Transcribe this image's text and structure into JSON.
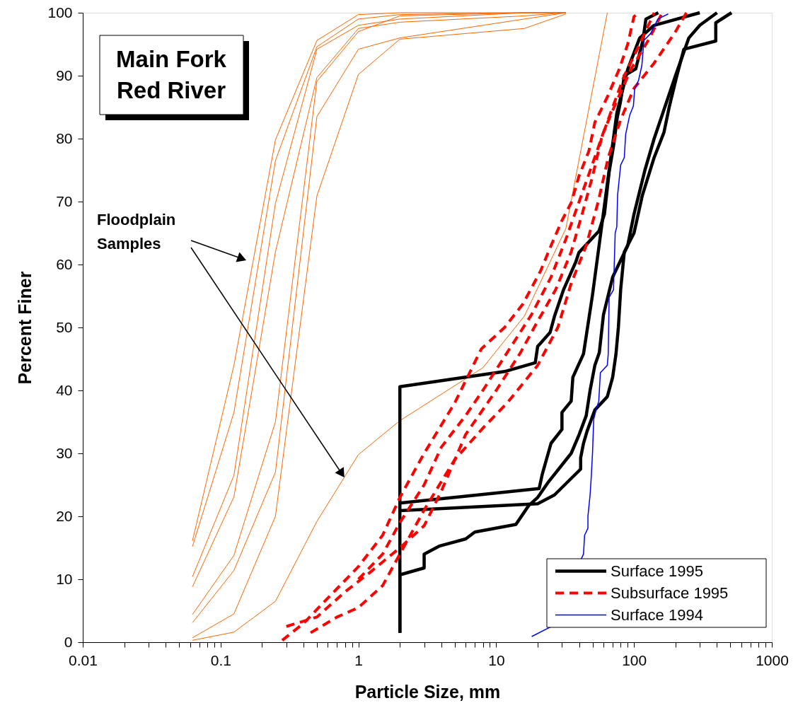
{
  "chart_data": {
    "type": "line",
    "title": "Main Fork\nRed River",
    "xlabel": "Particle Size, mm",
    "ylabel": "Percent Finer",
    "annotations": [
      "Floodplain\nSamples"
    ],
    "log": "x",
    "grid": false,
    "legend": "bottom right",
    "marker": "none",
    "xlim": [
      0.01,
      1000
    ],
    "ylim": [
      0,
      100
    ],
    "xticks": [
      0.01,
      {
        "value": 0.02,
        "label": null
      },
      {
        "value": 0.03,
        "label": null
      },
      {
        "value": 0.04,
        "label": null
      },
      {
        "value": 0.05,
        "label": null
      },
      {
        "value": 0.06,
        "label": null
      },
      {
        "value": 0.07,
        "label": null
      },
      {
        "value": 0.08,
        "label": null
      },
      {
        "value": 0.09,
        "label": null
      },
      0.1,
      {
        "value": 0.2,
        "label": null
      },
      {
        "value": 0.3,
        "label": null
      },
      {
        "value": 0.4,
        "label": null
      },
      {
        "value": 0.5,
        "label": null
      },
      {
        "value": 0.6,
        "label": null
      },
      {
        "value": 0.7,
        "label": null
      },
      {
        "value": 0.8,
        "label": null
      },
      {
        "value": 0.9,
        "label": null
      },
      1,
      {
        "value": 2,
        "label": null
      },
      {
        "value": 3,
        "label": null
      },
      {
        "value": 4,
        "label": null
      },
      {
        "value": 5,
        "label": null
      },
      {
        "value": 6,
        "label": null
      },
      {
        "value": 7,
        "label": null
      },
      {
        "value": 8,
        "label": null
      },
      {
        "value": 9,
        "label": null
      },
      10,
      {
        "value": 20,
        "label": null
      },
      {
        "value": 30,
        "label": null
      },
      {
        "value": 40,
        "label": null
      },
      {
        "value": 50,
        "label": null
      },
      {
        "value": 60,
        "label": null
      },
      {
        "value": 70,
        "label": null
      },
      {
        "value": 80,
        "label": null
      },
      {
        "value": 90,
        "label": null
      },
      100,
      {
        "value": 200,
        "label": null
      },
      {
        "value": 300,
        "label": null
      },
      {
        "value": 400,
        "label": null
      },
      {
        "value": 500,
        "label": null
      },
      {
        "value": 600,
        "label": null
      },
      {
        "value": 700,
        "label": null
      },
      {
        "value": 800,
        "label": null
      },
      {
        "value": 900,
        "label": null
      },
      1000
    ],
    "yticks": [
      0,
      10,
      20,
      30,
      40,
      50,
      60,
      70,
      80,
      90,
      100
    ],
    "series": [
      {
        "color": "#ff6600",
        "x": [
          0.0625,
          0.125,
          0.25,
          0.5,
          1,
          2,
          16,
          32
        ],
        "values": [
          16.1,
          44,
          79.8,
          95.6,
          99.7,
          100,
          100,
          100
        ]
      },
      {
        "color": "#ff6600",
        "x": [
          0.0625,
          0.125,
          0.25,
          0.5,
          1,
          2,
          16,
          32
        ],
        "values": [
          15.2,
          36.5,
          76.5,
          94.6,
          99,
          99.7,
          100,
          100
        ]
      },
      {
        "color": "#ff6600",
        "x": [
          0.0625,
          0.125,
          0.25,
          0.5,
          1,
          2,
          16,
          32
        ],
        "values": [
          10.4,
          26.5,
          69.7,
          94.2,
          98,
          99,
          100,
          100
        ]
      },
      {
        "color": "#ff6600",
        "x": [
          0.0625,
          0.125,
          0.25,
          0.5,
          1,
          2,
          16,
          32
        ],
        "values": [
          8.8,
          23.1,
          62,
          89.7,
          97.5,
          98.5,
          99.5,
          100
        ]
      },
      {
        "color": "#ff6600",
        "x": [
          0.0625,
          0.125,
          0.25,
          0.5,
          1,
          2,
          16,
          32
        ],
        "values": [
          4.4,
          13.8,
          35,
          89.1,
          97,
          99.5,
          100,
          100
        ]
      },
      {
        "color": "#ff6600",
        "x": [
          0.0625,
          0.125,
          0.25,
          0.5,
          1,
          2,
          16,
          32
        ],
        "values": [
          3.1,
          11.4,
          27,
          83.5,
          94.2,
          96,
          99,
          100
        ]
      },
      {
        "color": "#ff6600",
        "x": [
          0.0625,
          0.125,
          0.25,
          0.5,
          1,
          2,
          16,
          32
        ],
        "values": [
          0.7,
          4.5,
          20,
          70.9,
          90.2,
          95.8,
          97.5,
          99.8
        ]
      },
      {
        "color": "#ff6600",
        "x": [
          0.0625,
          0.125,
          0.25,
          0.5,
          1,
          2,
          8,
          16,
          32,
          64
        ],
        "values": [
          0.3,
          1.6,
          6.5,
          19.2,
          29.8,
          35.2,
          43.6,
          51.8,
          65.7,
          100
        ]
      },
      {
        "name": "Surface 1995",
        "color": "#000000",
        "line_style": "solid",
        "x": [
          2,
          2,
          11.5,
          19.2,
          20,
          24.6,
          26.5,
          30.8,
          37.8,
          39.8,
          55.6,
          61,
          66,
          71,
          75.5,
          80,
          85,
          103,
          116,
          122,
          150
        ],
        "values": [
          1.5,
          40.6,
          43,
          44.4,
          47,
          49.2,
          51.8,
          56,
          60.4,
          61.9,
          65.3,
          68,
          74.7,
          78.8,
          83.3,
          86,
          90,
          91.1,
          95.6,
          99,
          100
        ]
      },
      {
        "color": "#000000",
        "line_style": "solid",
        "x": [
          2,
          20.5,
          21.6,
          25,
          30,
          30,
          35,
          36,
          43,
          50,
          59,
          66,
          75,
          90,
          110,
          140,
          300
        ],
        "values": [
          22.1,
          24.4,
          26.7,
          31.6,
          33.8,
          36.5,
          38.3,
          42.1,
          45.8,
          55.2,
          67,
          75,
          84,
          91,
          96,
          98,
          100
        ]
      },
      {
        "color": "#000000",
        "line_style": "solid",
        "x": [
          2,
          20,
          26.5,
          41,
          41,
          43,
          45.6,
          52,
          64,
          70,
          74,
          77,
          80,
          85,
          100,
          115,
          140,
          165,
          180,
          203,
          230,
          392,
          392,
          510
        ],
        "values": [
          20.9,
          22,
          23.4,
          27.5,
          29.3,
          31.6,
          33.5,
          36.9,
          39,
          42.1,
          45.8,
          50,
          56,
          62,
          65,
          71,
          77,
          81,
          85,
          89.7,
          94.2,
          95.5,
          98.4,
          100
        ]
      },
      {
        "color": "#000000",
        "line_style": "solid",
        "x": [
          2,
          2,
          3,
          3,
          3.9,
          6,
          7,
          13.9,
          17.2,
          20,
          24,
          35,
          40,
          45,
          48,
          52,
          56,
          60,
          70,
          90,
          100,
          120,
          140,
          200,
          250,
          300,
          400
        ],
        "values": [
          1.5,
          10.7,
          11.8,
          14,
          15.3,
          16.4,
          17.5,
          18.7,
          21.7,
          23,
          25.5,
          30,
          33,
          36,
          40,
          44,
          46,
          52,
          58,
          63,
          68,
          75,
          80,
          90,
          96,
          98,
          100
        ]
      },
      {
        "name": "Subsurface 1995",
        "color": "#ff0000",
        "line_style": "dashed",
        "x": [
          0.28,
          0.4,
          0.6,
          1,
          1.5,
          2,
          3,
          5,
          7.8,
          11.5,
          15.6,
          21,
          25,
          30,
          35,
          39.8,
          47,
          52,
          64,
          78,
          90,
          100,
          110
        ],
        "values": [
          0.3,
          3,
          7,
          12,
          17,
          23,
          30,
          38,
          46.6,
          50,
          53.7,
          59,
          63,
          67,
          69.8,
          74,
          78,
          82.6,
          86.6,
          91,
          95,
          99.4,
          100
        ]
      },
      {
        "color": "#ff0000",
        "line_style": "dashed",
        "x": [
          0.3,
          0.5,
          0.8,
          1.2,
          2,
          3,
          4,
          6,
          10,
          15,
          20,
          27,
          35,
          42,
          50,
          58,
          70,
          85,
          110,
          140
        ],
        "values": [
          2.5,
          4,
          8,
          11,
          15,
          18.5,
          24,
          33,
          40,
          46,
          51,
          56,
          62,
          68,
          74,
          80,
          85,
          90,
          95,
          100
        ]
      },
      {
        "color": "#ff0000",
        "line_style": "dashed",
        "x": [
          0.45,
          0.7,
          1,
          1.5,
          2,
          3,
          5,
          8,
          12,
          20,
          28,
          35,
          45,
          55,
          65,
          80,
          100,
          140,
          200,
          240
        ],
        "values": [
          1.5,
          4,
          5.5,
          9,
          14,
          21,
          29,
          34,
          38,
          44,
          50,
          57,
          63,
          70,
          77,
          83,
          88,
          92,
          97,
          100
        ]
      },
      {
        "color": "#ff0000",
        "line_style": "dashed",
        "x": [
          1,
          1.5,
          2,
          3,
          4,
          6,
          8,
          12,
          18,
          25,
          32,
          40,
          50,
          60,
          75,
          95,
          130,
          160
        ],
        "values": [
          10,
          14,
          19,
          25,
          31,
          36,
          40,
          46,
          52,
          58,
          64,
          70,
          76,
          81,
          86,
          91,
          96,
          100
        ]
      },
      {
        "name": "Surface 1994",
        "color": "#0000ff",
        "line_style": "solid",
        "x": [
          18.1,
          24.7,
          43,
          43.8,
          46.3,
          46.3,
          48,
          49,
          50,
          51,
          53.5,
          55.5,
          57,
          64,
          65,
          66,
          71,
          73,
          75,
          76,
          80,
          85,
          87,
          93,
          99,
          101,
          108,
          114,
          118,
          132,
          149,
          177
        ],
        "values": [
          0.9,
          2.4,
          14,
          17,
          18.1,
          20,
          23.4,
          26.4,
          30.1,
          35.4,
          37.2,
          38.3,
          42.8,
          44,
          45.8,
          54.8,
          56,
          65,
          66,
          71,
          75.8,
          77,
          80.7,
          83.7,
          85.2,
          87.8,
          89.3,
          91.6,
          95.6,
          96.7,
          99,
          99.8
        ]
      }
    ]
  }
}
